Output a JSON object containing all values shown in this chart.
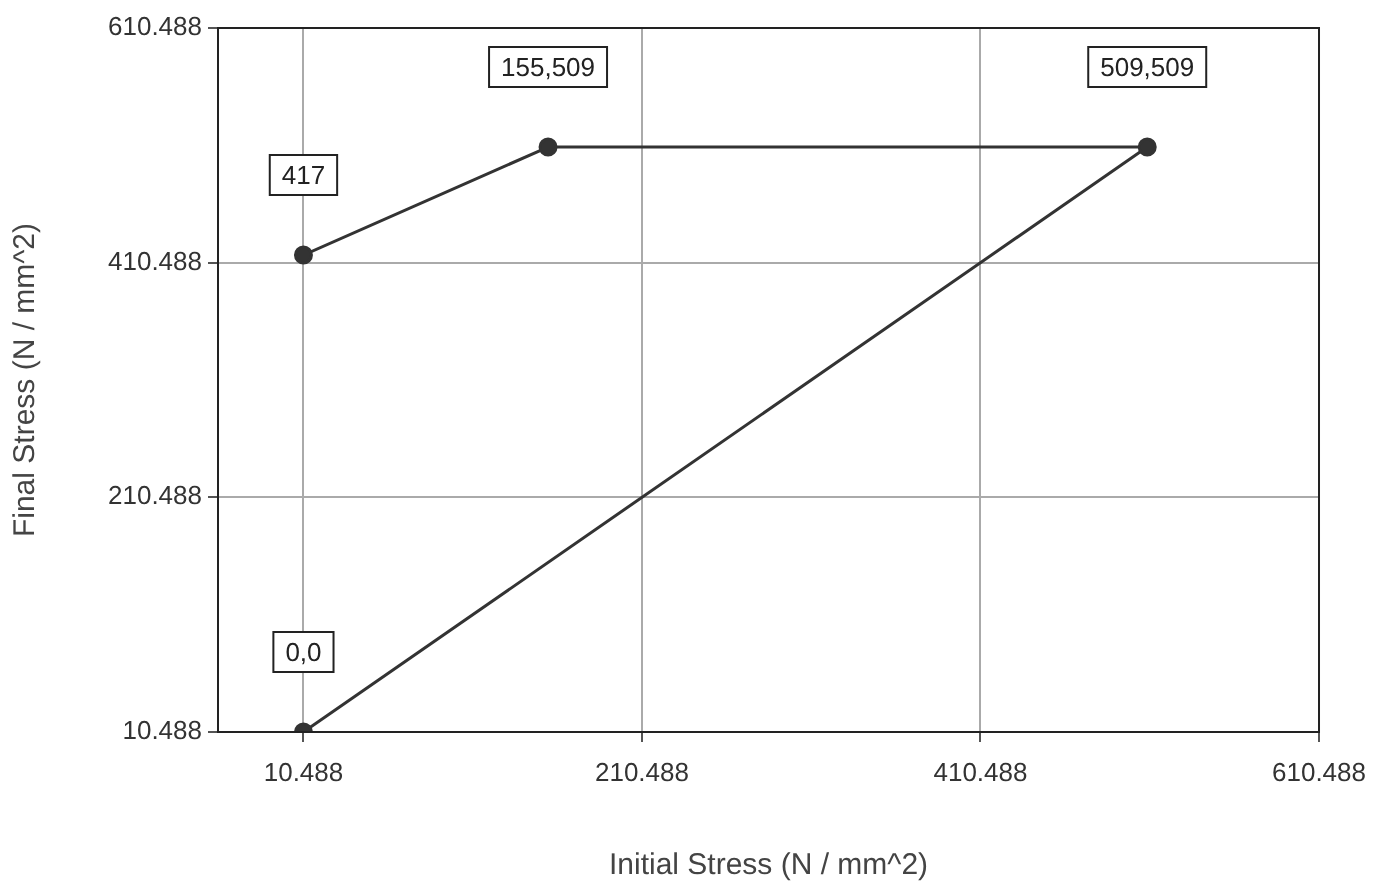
{
  "chart_data": {
    "type": "line",
    "xlabel": "Initial Stress (N / mm^2)",
    "ylabel": "Final Stress (N / mm^2)",
    "x": [
      10.488,
      155,
      509,
      10.488
    ],
    "series": [
      {
        "color": "#333333",
        "values": [
          417,
          509,
          509,
          10.488
        ]
      }
    ],
    "annotations": [
      {
        "text": "417",
        "x": 10.488,
        "y": 417
      },
      {
        "text": "155,509",
        "x": 155,
        "y": 509
      },
      {
        "text": "509,509",
        "x": 509,
        "y": 509
      },
      {
        "text": "0,0",
        "x": 10.488,
        "y": 10.488
      }
    ],
    "xlim": [
      -40,
      610.488
    ],
    "xticks": [
      10.488,
      210.488,
      410.488,
      610.488
    ],
    "ylim": [
      10.488,
      610.488
    ],
    "yticks": [
      10.488,
      210.488,
      410.488,
      610.488
    ],
    "grid": true,
    "legend": false,
    "marker": "circle",
    "line_style": "solid"
  }
}
